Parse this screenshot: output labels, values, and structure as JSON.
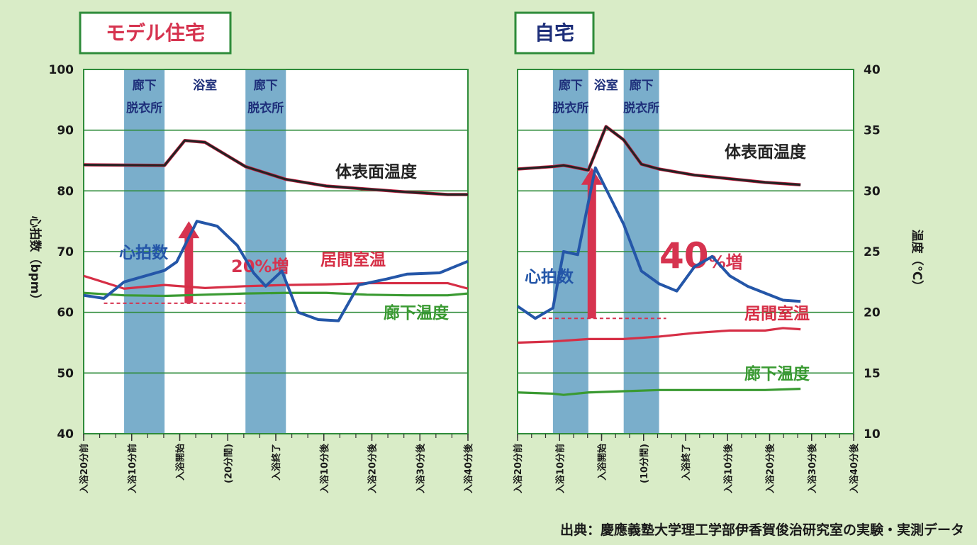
{
  "source": "出典：慶應義塾大学理工学部伊香賀俊治研究室の実験・実測データ",
  "colors": {
    "background": "#d9ecc7",
    "plot_bg": "#ffffff",
    "zone_band": "#7aaecb",
    "gridline": "#2e8b3a",
    "body_surface_temp": "#232323",
    "body_surface_temp_edge": "#cc2244",
    "heart_rate": "#2456a8",
    "living_room_temp": "#d62f46",
    "hallway_temp": "#3a9a32",
    "arrow": "#d6334f",
    "title_box_border": "#2e8b3a",
    "model_title": "#d6334f",
    "home_title": "#1e2f7a"
  },
  "chart_data": [
    {
      "type": "line",
      "title": "モデル住宅",
      "ylabel_left": "心拍数（bpm）",
      "ylim_left": [
        40,
        100
      ],
      "yticks_left": [
        "40",
        "50",
        "60",
        "70",
        "80",
        "90",
        "100"
      ],
      "x_tick_labels": [
        "入浴20分前",
        "入浴10分前",
        "入浴開始",
        "(20分間)",
        "入浴終了",
        "入浴10分後",
        "入浴20分後",
        "入浴30分後",
        "入浴40分後"
      ],
      "zones": [
        {
          "label_top": "廊下",
          "label_bottom": "脱衣所",
          "x": [
            -10,
            0
          ],
          "shaded": true
        },
        {
          "label_top": "浴室",
          "label_bottom": "",
          "x": [
            0,
            20
          ],
          "shaded": false
        },
        {
          "label_top": "廊下",
          "label_bottom": "脱衣所",
          "x": [
            20,
            30
          ],
          "shaded": true
        }
      ],
      "series": [
        {
          "name": "体表面温度",
          "axis": "left",
          "color_key": "body_surface_temp",
          "x": [
            -20,
            0,
            5,
            10,
            15,
            20,
            30,
            40,
            50,
            60,
            70,
            75
          ],
          "y": [
            84.3,
            84.2,
            88.3,
            88.0,
            86.0,
            84.0,
            81.9,
            80.8,
            80.3,
            79.8,
            79.4,
            79.4
          ]
        },
        {
          "name": "心拍数",
          "axis": "left",
          "color_key": "heart_rate",
          "x": [
            -20,
            -15,
            -10,
            0,
            3,
            8,
            13,
            18,
            22,
            25,
            29,
            33,
            38,
            43,
            48,
            55,
            60,
            68,
            75
          ],
          "y": [
            62.8,
            62.3,
            65.0,
            66.9,
            68.3,
            75.0,
            74.2,
            71.0,
            66.5,
            64.3,
            66.8,
            60.0,
            58.8,
            58.6,
            64.5,
            65.5,
            66.3,
            66.5,
            68.4
          ]
        },
        {
          "name": "居間室温",
          "axis": "left",
          "color_key": "living_room_temp",
          "x": [
            -20,
            -10,
            0,
            10,
            20,
            30,
            40,
            50,
            60,
            70,
            75
          ],
          "y": [
            66.0,
            63.9,
            64.5,
            64.0,
            64.3,
            64.5,
            64.6,
            64.8,
            64.8,
            64.8,
            63.9
          ]
        },
        {
          "name": "廊下温度",
          "axis": "left",
          "color_key": "hallway_temp",
          "x": [
            -20,
            -10,
            0,
            10,
            20,
            30,
            40,
            50,
            60,
            70,
            75
          ],
          "y": [
            63.2,
            62.8,
            62.7,
            62.9,
            63.1,
            63.2,
            63.2,
            62.9,
            62.8,
            62.8,
            63.1
          ]
        }
      ],
      "baseline_heart_rate": 61.5,
      "increase_label": {
        "pct": "20",
        "unit": "%増",
        "from": 61.5,
        "to": 75.0,
        "x": 6
      }
    },
    {
      "type": "line",
      "title": "自宅",
      "ylabel_right": "温度（℃）",
      "ylim_right": [
        10,
        40
      ],
      "yticks_right": [
        "10",
        "15",
        "20",
        "25",
        "30",
        "35",
        "40"
      ],
      "x_tick_labels": [
        "入浴20分前",
        "入浴10分前",
        "入浴開始",
        "(10分間)",
        "入浴終了",
        "入浴10分後",
        "入浴20分後",
        "入浴30分後",
        "入浴40分後"
      ],
      "zones": [
        {
          "label_top": "廊下",
          "label_bottom": "脱衣所",
          "x": [
            -10,
            0
          ],
          "shaded": true
        },
        {
          "label_top": "浴室",
          "label_bottom": "",
          "x": [
            0,
            10
          ],
          "shaded": false
        },
        {
          "label_top": "廊下",
          "label_bottom": "脱衣所",
          "x": [
            10,
            20
          ],
          "shaded": true
        }
      ],
      "series": [
        {
          "name": "体表面温度",
          "axis": "right",
          "color_key": "body_surface_temp",
          "x": [
            -20,
            -10,
            -7,
            -5,
            0,
            5,
            10,
            15,
            20,
            30,
            40,
            50,
            60
          ],
          "y": [
            31.8,
            32.0,
            32.1,
            32.0,
            31.7,
            35.3,
            34.2,
            32.2,
            31.8,
            31.3,
            31.0,
            30.7,
            30.5
          ]
        },
        {
          "name": "心拍数",
          "axis": "left",
          "color_key": "heart_rate",
          "x": [
            -20,
            -15,
            -10,
            -7,
            -3,
            2,
            7,
            10,
            15,
            20,
            25,
            30,
            35,
            40,
            45,
            55,
            60
          ],
          "y": [
            61.0,
            59.0,
            60.7,
            70.0,
            69.5,
            83.8,
            78.0,
            74.5,
            66.8,
            64.7,
            63.5,
            67.5,
            69.2,
            66.0,
            64.3,
            62.0,
            61.8
          ]
        },
        {
          "name": "居間室温",
          "axis": "right",
          "color_key": "living_room_temp",
          "x": [
            -20,
            -10,
            0,
            10,
            20,
            30,
            40,
            50,
            55,
            60
          ],
          "y": [
            17.5,
            17.6,
            17.8,
            17.8,
            18.0,
            18.3,
            18.5,
            18.5,
            18.7,
            18.6
          ]
        },
        {
          "name": "廊下温度",
          "axis": "right",
          "color_key": "hallway_temp",
          "x": [
            -20,
            -10,
            -7,
            0,
            10,
            20,
            30,
            40,
            50,
            60
          ],
          "y": [
            13.4,
            13.3,
            13.2,
            13.4,
            13.5,
            13.6,
            13.6,
            13.6,
            13.6,
            13.7
          ]
        }
      ],
      "baseline_heart_rate": 59.0,
      "increase_label": {
        "pct": "40",
        "unit": "%増",
        "from": 59.0,
        "to": 83.8,
        "x": 1
      }
    }
  ]
}
